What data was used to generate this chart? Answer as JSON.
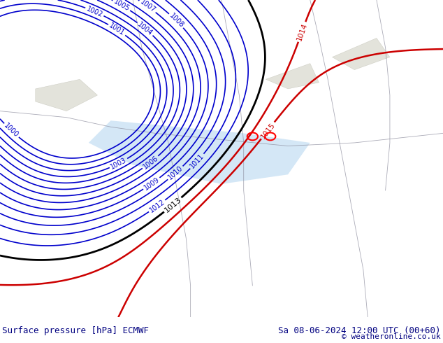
{
  "title_left": "Surface pressure [hPa] ECMWF",
  "title_right": "Sa 08-06-2024 12:00 UTC (00+60)",
  "copyright": "© weatheronline.co.uk",
  "bg_color_land_light": "#c8f0a0",
  "footer_bg": "#c8f0a0",
  "blue_contour_levels": [
    1000,
    1001,
    1002,
    1003,
    1004,
    1005,
    1006,
    1007,
    1008,
    1009,
    1010,
    1011,
    1012
  ],
  "black_contour_levels": [
    1013
  ],
  "red_contour_levels": [
    1014,
    1015
  ],
  "text_color_blue": "#0000cc",
  "text_color_black": "#000000",
  "text_color_red": "#cc0000",
  "text_color_dark": "#000080",
  "figsize": [
    6.34,
    4.9
  ],
  "dpi": 100
}
